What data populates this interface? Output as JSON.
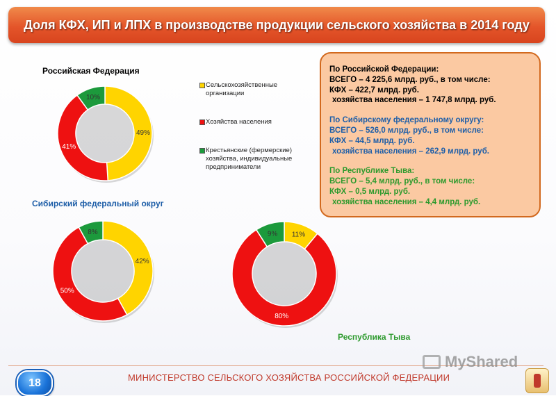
{
  "header": {
    "title": "Доля КФХ, ИП и ЛПХ в производстве продукции сельского хозяйства в 2014 году"
  },
  "colors": {
    "yellow": "#ffd400",
    "red": "#ee1111",
    "green": "#1c9a3c",
    "rf_title": "#000000",
    "sfo_title": "#1f5fa8",
    "tuva_title": "#2d9a2d"
  },
  "legend": [
    {
      "label": "Сельскохозяйственные организации",
      "color": "#ffd400"
    },
    {
      "label": "Хозяйства населения",
      "color": "#ee1111"
    },
    {
      "label": "Крестьянские (фермерские) хозяйства, индивидуальные предприниматели",
      "color": "#1c9a3c"
    }
  ],
  "chart_data": [
    {
      "type": "pie",
      "title": "Российская Федерация",
      "categories": [
        "Сельскохозяйственные организации",
        "Хозяйства населения",
        "Крестьянские (фермерские) хозяйства, индивидуальные предприниматели"
      ],
      "values": [
        49,
        41,
        10
      ],
      "labels": [
        "49%",
        "41%",
        "10%"
      ]
    },
    {
      "type": "pie",
      "title": "Сибирский федеральный округ",
      "categories": [
        "Сельскохозяйственные организации",
        "Хозяйства населения",
        "Крестьянские (фермерские) хозяйства, индивидуальные предприниматели"
      ],
      "values": [
        42,
        50,
        8
      ],
      "labels": [
        "42%",
        "50%",
        "8%"
      ]
    },
    {
      "type": "pie",
      "title": "Республика Тыва",
      "categories": [
        "Сельскохозяйственные организации",
        "Хозяйства населения",
        "Крестьянские (фермерские) хозяйства, индивидуальные предприниматели"
      ],
      "values": [
        11,
        80,
        9
      ],
      "labels": [
        "11%",
        "80%",
        "9%"
      ]
    }
  ],
  "info": {
    "rf": {
      "heading": "По Российской Федерации:",
      "total": "ВСЕГО – 4 225,6 млрд. руб., в том числе:",
      "kfh": "КФХ – 422,7 млрд. руб.",
      "households": "хозяйства населения – 1 747,8 млрд. руб."
    },
    "sfo": {
      "heading": "По Сибирскому федеральному округу:",
      "total": "ВСЕГО – 526,0 млрд. руб., в том числе:",
      "kfh": "КФХ – 44,5 млрд. руб.",
      "households": "хозяйства населения – 262,9 млрд. руб."
    },
    "tuva": {
      "heading": "По Республике Тыва:",
      "total": "ВСЕГО – 5,4 млрд. руб., в том числе:",
      "kfh": "КФХ – 0,5 млрд. руб.",
      "households": "хозяйства населения – 4,4 млрд. руб."
    }
  },
  "footer": {
    "page_number": "18",
    "ministry": "МИНИСТЕРСТВО СЕЛЬСКОГО ХОЗЯЙСТВА РОССИЙСКОЙ ФЕДЕРАЦИИ",
    "watermark": "MyShared"
  }
}
